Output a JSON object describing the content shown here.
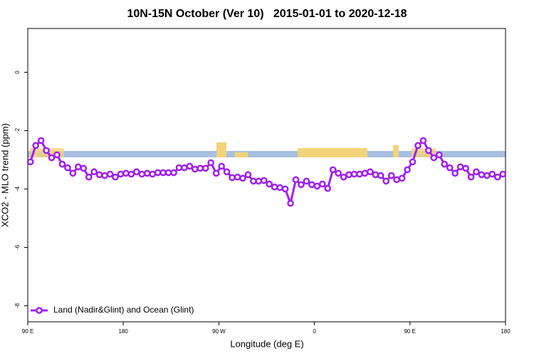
{
  "chart_data": {
    "type": "line",
    "title": "10N-15N October (Ver 10)   2015-01-01 to 2020-12-18",
    "x_label": "Longitude (deg E)",
    "y_label": "XCO2 - MLO trend (ppm)",
    "x": [
      92.5,
      97.5,
      102.5,
      107.5,
      112.5,
      117.5,
      122.5,
      127.5,
      132.5,
      137.5,
      142.5,
      147.5,
      152.5,
      157.5,
      162.5,
      167.5,
      172.5,
      177.5,
      182.5,
      187.5,
      192.5,
      197.5,
      202.5,
      207.5,
      212.5,
      217.5,
      222.5,
      227.5,
      232.5,
      237.5,
      242.5,
      247.5,
      252.5,
      257.5,
      262.5,
      267.5,
      272.5,
      277.5,
      282.5,
      287.5,
      292.5,
      297.5,
      302.5,
      307.5,
      312.5,
      317.5,
      322.5,
      327.5,
      332.5,
      337.5,
      342.5,
      347.5,
      352.5,
      357.5,
      362.5,
      367.5,
      372.5,
      377.5,
      382.5,
      387.5,
      392.5,
      397.5,
      402.5,
      407.5,
      412.5,
      417.5,
      422.5,
      427.5,
      432.5,
      437.5,
      442.5,
      447.5,
      452.5,
      457.5,
      462.5,
      467.5,
      472.5,
      477.5,
      482.5,
      487.5,
      492.5,
      497.5,
      502.5,
      507.5,
      512.5,
      517.5,
      522.5,
      527.5,
      532.5,
      537.5
    ],
    "series": [
      {
        "name": "Land (Nadir&Glint) and Ocean (Glint)",
        "color": "#a020f0",
        "values": [
          -3.07,
          -2.51,
          -2.34,
          -2.68,
          -2.93,
          -2.83,
          -3.15,
          -3.27,
          -3.46,
          -3.24,
          -3.29,
          -3.59,
          -3.41,
          -3.51,
          -3.54,
          -3.49,
          -3.59,
          -3.49,
          -3.46,
          -3.49,
          -3.41,
          -3.49,
          -3.46,
          -3.49,
          -3.44,
          -3.44,
          -3.44,
          -3.44,
          -3.27,
          -3.27,
          -3.22,
          -3.32,
          -3.29,
          -3.29,
          -3.1,
          -3.46,
          -3.22,
          -3.41,
          -3.61,
          -3.59,
          -3.63,
          -3.51,
          -3.73,
          -3.73,
          -3.71,
          -3.83,
          -3.93,
          -3.95,
          -4.0,
          -4.49,
          -3.68,
          -3.85,
          -3.73,
          -3.85,
          -3.9,
          -3.83,
          -3.98,
          -3.34,
          -3.46,
          -3.59,
          -3.51,
          -3.49,
          -3.49,
          -3.46,
          -3.41,
          -3.51,
          -3.54,
          -3.73,
          -3.54,
          -3.68,
          -3.63,
          -3.34,
          -3.07,
          -2.51,
          -2.34,
          -2.68,
          -2.93,
          -2.83,
          -3.15,
          -3.27,
          -3.46,
          -3.24,
          -3.29,
          -3.59,
          -3.41,
          -3.51,
          -3.54,
          -3.49,
          -3.59,
          -3.49
        ]
      }
    ],
    "xlim": [
      90,
      540
    ],
    "xticks": [
      {
        "value": 90,
        "label": "90 E"
      },
      180,
      {
        "value": 270,
        "label": "90 W"
      },
      {
        "value": 360,
        "label": "0"
      },
      {
        "value": 450,
        "label": "90 E"
      },
      {
        "value": 540,
        "label": "180"
      }
    ],
    "ylim": [
      -8.55,
      1.5
    ],
    "yticks": [
      0,
      -2,
      -4,
      -6,
      -8
    ],
    "legend": "bottom left"
  }
}
